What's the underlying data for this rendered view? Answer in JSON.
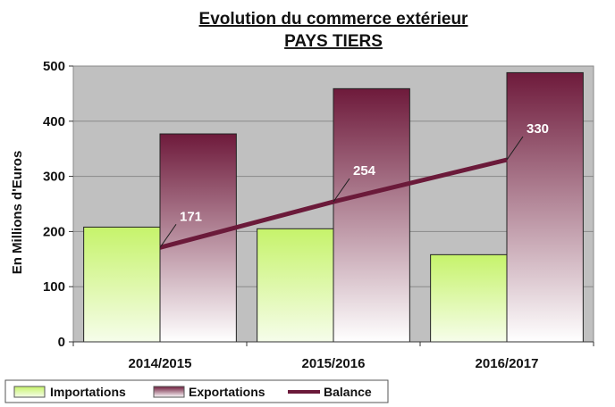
{
  "chart_data": {
    "type": "bar",
    "title": "Evolution du commerce extérieur",
    "subtitle": "PAYS TIERS",
    "ylabel": "En Millions d'Euros",
    "xlabel": "",
    "ylim": [
      0,
      500
    ],
    "yticks": [
      0,
      100,
      200,
      300,
      400,
      500
    ],
    "grid": true,
    "legend": "bottom",
    "categories": [
      "2014/2015",
      "2015/2016",
      "2016/2017"
    ],
    "series": [
      {
        "name": "Importations",
        "kind": "bar",
        "values": [
          208,
          205,
          158
        ],
        "color_top": "#c6f36b",
        "color_bottom": "#f6fdea"
      },
      {
        "name": "Exportations",
        "kind": "bar",
        "values": [
          377,
          459,
          488
        ],
        "color_top": "#6e1a3b",
        "color_bottom": "#ffffff"
      },
      {
        "name": "Balance",
        "kind": "line",
        "values": [
          171,
          254,
          330
        ],
        "labels": [
          "171",
          "254",
          "330"
        ],
        "color": "#6b1a3a"
      }
    ],
    "plot_background": "#c0c0c0"
  }
}
